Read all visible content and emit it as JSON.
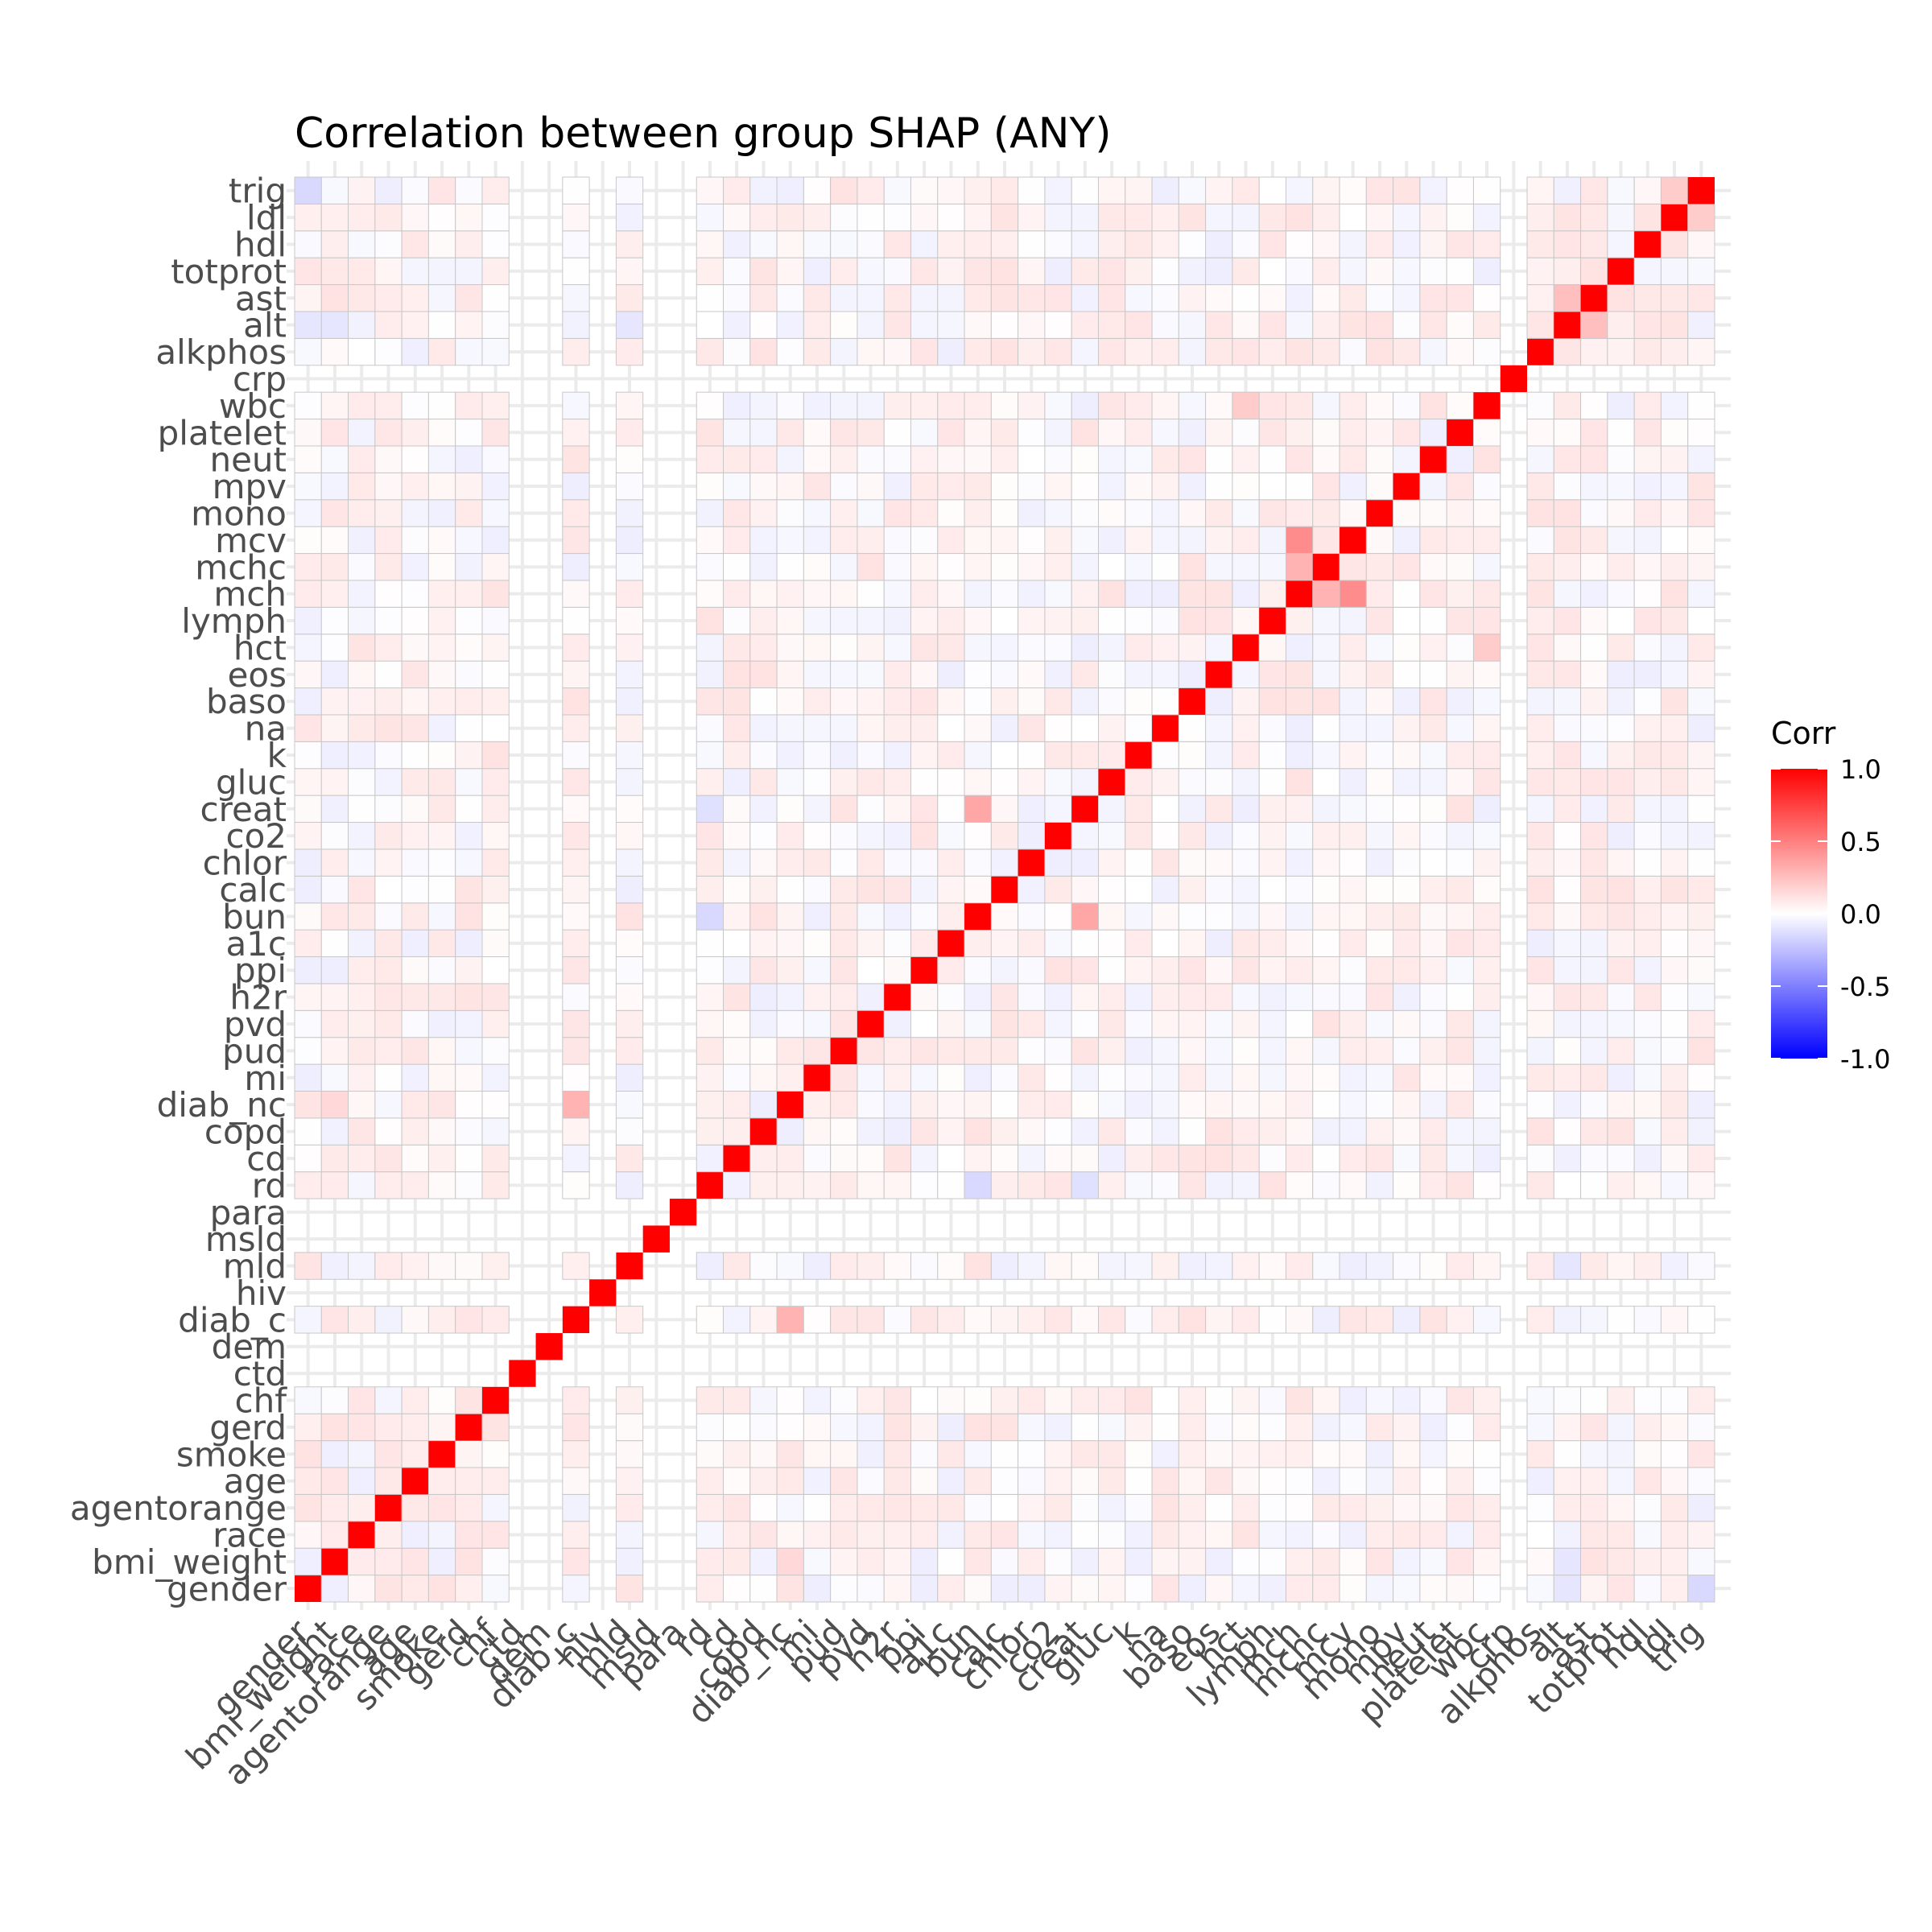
{
  "chart_data": {
    "type": "heatmap",
    "title": "Correlation between group SHAP (ANY)",
    "xlabel": "",
    "ylabel": "",
    "variables": [
      "gender",
      "bmi_weight",
      "race",
      "agentorange",
      "age",
      "smoke",
      "gerd",
      "chf",
      "ctd",
      "dem",
      "diab_c",
      "hiv",
      "mld",
      "msld",
      "para",
      "rd",
      "cd",
      "copd",
      "diab_nc",
      "mi",
      "pud",
      "pvd",
      "h2r",
      "ppi",
      "a1c",
      "bun",
      "calc",
      "chlor",
      "co2",
      "creat",
      "gluc",
      "k",
      "na",
      "baso",
      "eos",
      "hct",
      "lymph",
      "mch",
      "mchc",
      "mcv",
      "mono",
      "mpv",
      "neut",
      "platelet",
      "wbc",
      "crp",
      "alkphos",
      "alt",
      "ast",
      "totprot",
      "hdl",
      "ldl",
      "trig"
    ],
    "blank_variables": [
      "ctd",
      "dem",
      "hiv",
      "msld",
      "para",
      "crp"
    ],
    "legend": {
      "title": "Corr",
      "ticks": [
        "1.0",
        "0.5",
        "0.0",
        "-0.5",
        "-1.0"
      ],
      "tick_values": [
        1.0,
        0.5,
        0.0,
        -0.5,
        -1.0
      ],
      "low_color": "#0000ff",
      "mid_color": "#ffffff",
      "high_color": "#ff0000",
      "placement": "right"
    },
    "diagonal_value": 1.0,
    "notable_pairs": [
      {
        "a": "diab_nc",
        "b": "diab_c",
        "value": 0.3
      },
      {
        "a": "creat",
        "b": "bun",
        "value": 0.35
      },
      {
        "a": "mch",
        "b": "mcv",
        "value": 0.45
      },
      {
        "a": "mch",
        "b": "mchc",
        "value": 0.3
      },
      {
        "a": "alt",
        "b": "ast",
        "value": 0.25
      },
      {
        "a": "ldl",
        "b": "trig",
        "value": 0.2
      },
      {
        "a": "rd",
        "b": "bun",
        "value": -0.15
      },
      {
        "a": "rd",
        "b": "creat",
        "value": -0.12
      },
      {
        "a": "alt",
        "b": "gender",
        "value": -0.1
      },
      {
        "a": "alt",
        "b": "bmi_weight",
        "value": -0.1
      },
      {
        "a": "gender",
        "b": "trig",
        "value": -0.15
      },
      {
        "a": "bmi_weight",
        "b": "diab_nc",
        "value": 0.15
      },
      {
        "a": "mld",
        "b": "alt",
        "value": -0.1
      },
      {
        "a": "hct",
        "b": "wbc",
        "value": 0.2
      },
      {
        "a": "creat",
        "b": "rd",
        "value": -0.12
      }
    ],
    "grid": true
  }
}
